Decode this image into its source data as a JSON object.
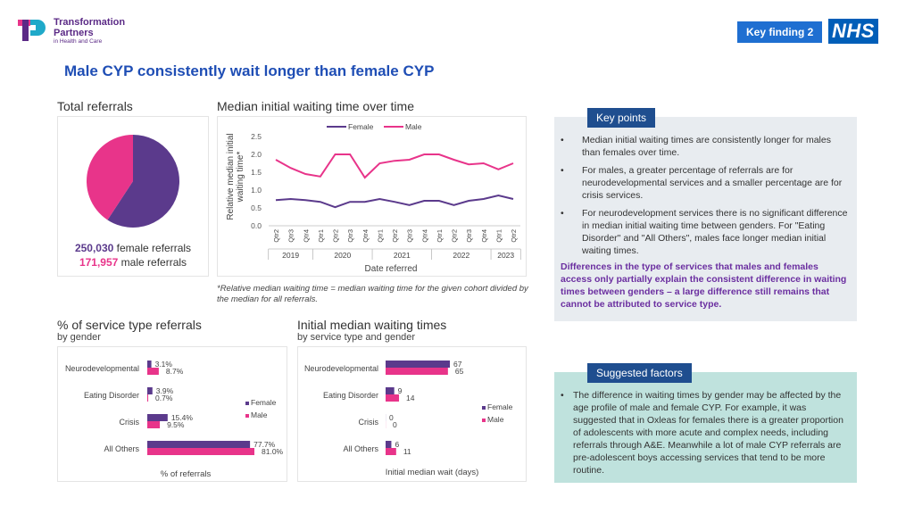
{
  "header": {
    "logo_line1": "Transformation",
    "logo_line2": "Partners",
    "logo_line3": "in Health and Care",
    "badge": "Key finding 2",
    "nhs": "NHS"
  },
  "title": "Male CYP consistently wait longer than female CYP",
  "referrals": {
    "title": "Total referrals",
    "female_count": "250,030",
    "female_text": " female referrals",
    "male_count": "171,957",
    "male_text": " male referrals"
  },
  "median_time": {
    "title": "Median initial waiting time over time",
    "footnote": "*Relative median waiting time = median waiting time for the given cohort divided by the median for all referrals."
  },
  "service_pct": {
    "title": "% of service type referrals",
    "subtitle": "by gender"
  },
  "wait_times": {
    "title": "Initial median waiting times",
    "subtitle": "by service type and gender"
  },
  "key_points": {
    "label": "Key points",
    "bullets": [
      "Median initial waiting times are consistently longer for males than females over time.",
      "For males, a greater percentage of referrals are for neurodevelopmental services and a smaller percentage are for crisis services.",
      "For neurodevelopment services there is no significant difference in median initial waiting time between genders. For \"Eating Disorder\" and \"All Others\", males face longer median initial waiting times."
    ],
    "conclusion": "Differences in the type of services that males and females access only partially explain the consistent difference in waiting times between genders – a large difference still remains that cannot be attributed to service type."
  },
  "suggested": {
    "label": "Suggested factors",
    "text": "The difference in waiting times by gender may be affected by the age profile of male and female CYP. For example, it was suggested that in Oxleas for females there is a greater proportion of adolescents with more acute and complex needs, including referrals through A&E. Meanwhile a lot of male CYP referrals are pre-adolescent boys accessing services that tend to be more routine."
  },
  "colors": {
    "female": "#5b3a8c",
    "male": "#e8348a",
    "title": "#1f4eb5"
  },
  "chart_data": [
    {
      "type": "pie",
      "title": "Total referrals",
      "labels": [
        "Female",
        "Male"
      ],
      "values": [
        250030,
        171957
      ]
    },
    {
      "type": "line",
      "title": "Median initial waiting time over time",
      "ylabel": "Relative median initial waiting time*",
      "xlabel": "Date referred",
      "ylim": [
        0,
        2.5
      ],
      "yticks": [
        "0.0",
        "0.5",
        "1.0",
        "1.5",
        "2.0",
        "2.5"
      ],
      "quarters": [
        "Qtr2",
        "Qtr3",
        "Qtr4",
        "Qtr1",
        "Qtr2",
        "Qtr3",
        "Qtr4",
        "Qtr1",
        "Qtr2",
        "Qtr3",
        "Qtr4",
        "Qtr1",
        "Qtr2",
        "Qtr3",
        "Qtr4",
        "Qtr1",
        "Qtr2"
      ],
      "years": [
        {
          "label": "2019",
          "span": 3
        },
        {
          "label": "2020",
          "span": 4
        },
        {
          "label": "2021",
          "span": 4
        },
        {
          "label": "2022",
          "span": 4
        },
        {
          "label": "2023",
          "span": 2
        }
      ],
      "series": [
        {
          "name": "Female",
          "values": [
            0.72,
            0.75,
            0.72,
            0.67,
            0.52,
            0.67,
            0.67,
            0.75,
            0.67,
            0.58,
            0.7,
            0.7,
            0.58,
            0.7,
            0.75,
            0.85,
            0.75
          ]
        },
        {
          "name": "Male",
          "values": [
            1.85,
            1.62,
            1.45,
            1.38,
            2.0,
            2.0,
            1.35,
            1.75,
            1.82,
            1.85,
            2.0,
            2.0,
            1.85,
            1.72,
            1.75,
            1.58,
            1.75
          ]
        }
      ]
    },
    {
      "type": "bar",
      "orientation": "horizontal",
      "title": "% of service type referrals",
      "xlabel": "% of referrals",
      "categories": [
        "Neurodevelopmental",
        "Eating Disorder",
        "Crisis",
        "All Others"
      ],
      "series": [
        {
          "name": "Female",
          "values": [
            3.1,
            3.9,
            15.4,
            77.7
          ],
          "labels": [
            "3.1%",
            "3.9%",
            "15.4%",
            "77.7%"
          ]
        },
        {
          "name": "Male",
          "values": [
            8.7,
            0.7,
            9.5,
            81.0
          ],
          "labels": [
            "8.7%",
            "0.7%",
            "9.5%",
            "81.0%"
          ]
        }
      ]
    },
    {
      "type": "bar",
      "orientation": "horizontal",
      "title": "Initial median waiting times",
      "xlabel": "Initial median wait (days)",
      "categories": [
        "Neurodevelopmental",
        "Eating Disorder",
        "Crisis",
        "All Others"
      ],
      "series": [
        {
          "name": "Female",
          "values": [
            67,
            9,
            0,
            6
          ]
        },
        {
          "name": "Male",
          "values": [
            65,
            14,
            0,
            11
          ]
        }
      ]
    }
  ]
}
